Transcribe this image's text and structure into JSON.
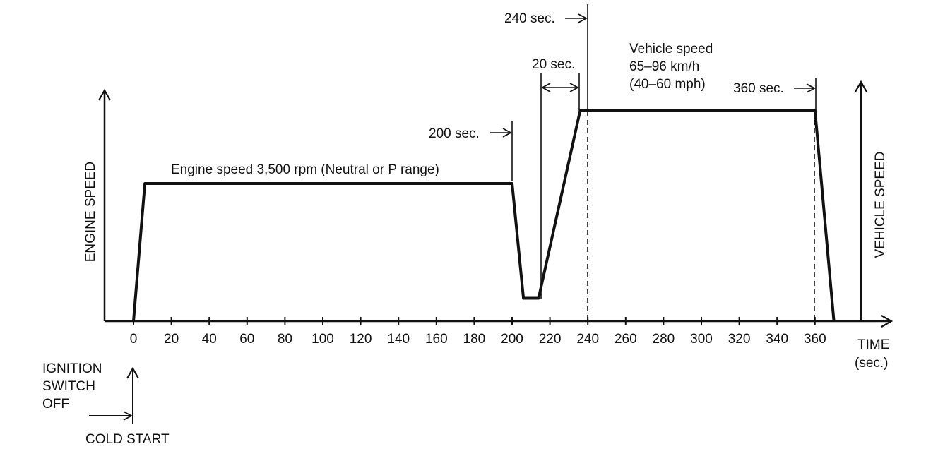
{
  "labels": {
    "engine_speed_axis": "ENGINE SPEED",
    "vehicle_speed_axis": "VEHICLE SPEED",
    "time_axis_line1": "TIME",
    "time_axis_line2": "(sec.)",
    "engine_plateau": "Engine speed 3,500 rpm (Neutral or P range)",
    "vehicle_line1": "Vehicle speed",
    "vehicle_line2": "65–96 km/h",
    "vehicle_line3": "(40–60 mph)",
    "callout_200": "200 sec.",
    "callout_20": "20 sec.",
    "callout_240": "240 sec.",
    "callout_360": "360 sec.",
    "ignition_line1": "IGNITION",
    "ignition_line2": "SWITCH",
    "ignition_line3": "OFF",
    "cold_start": "COLD START"
  },
  "time_ticks": [
    "0",
    "20",
    "40",
    "60",
    "80",
    "100",
    "120",
    "140",
    "160",
    "180",
    "200",
    "220",
    "240",
    "260",
    "280",
    "300",
    "320",
    "340",
    "360"
  ],
  "trace": {
    "description_units": "time in sec., level as fraction of full height",
    "points": [
      [
        0,
        0
      ],
      [
        6,
        0.6
      ],
      [
        200,
        0.6
      ],
      [
        206,
        0.1
      ],
      [
        214,
        0.1
      ],
      [
        236,
        0.92
      ],
      [
        360,
        0.92
      ],
      [
        370,
        0
      ]
    ]
  }
}
